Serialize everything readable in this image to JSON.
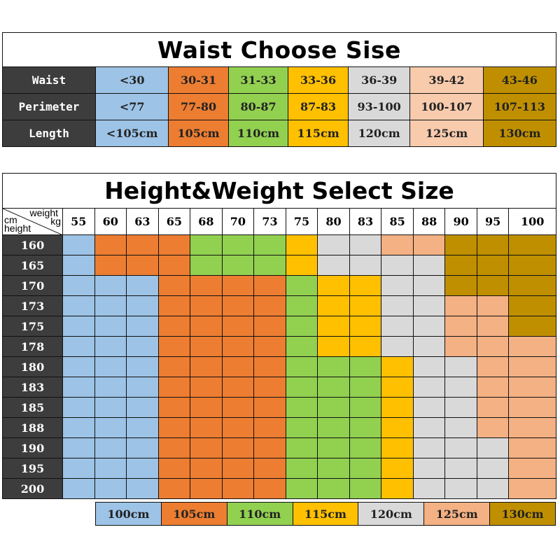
{
  "colors": {
    "dark_header": "#3d3d3d",
    "blue": "#9dc3e6",
    "orange": "#ed7d31",
    "green": "#92d050",
    "yellow": "#ffc000",
    "grey": "#d9d9d9",
    "peach_light": "#f8cbad",
    "peach": "#f4b183",
    "brown": "#bf8f00"
  },
  "waist_table": {
    "title": "Waist Choose Sise",
    "rows": [
      {
        "label": "Waist",
        "values": [
          "<30",
          "30-31",
          "31-33",
          "33-36",
          "36-39",
          "39-42",
          "43-46"
        ]
      },
      {
        "label": "Perimeter",
        "values": [
          "<77",
          "77-80",
          "80-87",
          "87-83",
          "93-100",
          "100-107",
          "107-113"
        ]
      },
      {
        "label": "Length",
        "values": [
          "<105cm",
          "105cm",
          "110cm",
          "115cm",
          "120cm",
          "125cm",
          "130cm"
        ]
      }
    ],
    "column_colors": [
      "blue",
      "orange",
      "green",
      "yellow",
      "grey",
      "peach_light",
      "brown"
    ]
  },
  "hw_table": {
    "title": "Height&Weight Select Size",
    "corner": {
      "weight": "weight",
      "kg": "kg",
      "cm": "cm",
      "height": "height"
    },
    "weights": [
      "55",
      "60",
      "63",
      "65",
      "68",
      "70",
      "73",
      "75",
      "80",
      "83",
      "85",
      "88",
      "90",
      "95",
      "100"
    ],
    "heights": [
      "160",
      "165",
      "170",
      "173",
      "175",
      "178",
      "180",
      "183",
      "185",
      "188",
      "190",
      "195",
      "200"
    ]
  },
  "legend": {
    "items": [
      {
        "label": "100cm",
        "color": "blue"
      },
      {
        "label": "105cm",
        "color": "orange"
      },
      {
        "label": "110cm",
        "color": "green"
      },
      {
        "label": "115cm",
        "color": "yellow"
      },
      {
        "label": "120cm",
        "color": "grey"
      },
      {
        "label": "125cm",
        "color": "peach"
      },
      {
        "label": "130cm",
        "color": "brown"
      }
    ]
  },
  "chart_data": {
    "type": "heatmap",
    "title": "Height&Weight Select Size",
    "xlabel": "weight kg",
    "ylabel": "height cm",
    "x": [
      "55",
      "60",
      "63",
      "65",
      "68",
      "70",
      "73",
      "75",
      "80",
      "83",
      "85",
      "88",
      "90",
      "95",
      "100"
    ],
    "y": [
      "160",
      "165",
      "170",
      "173",
      "175",
      "178",
      "180",
      "183",
      "185",
      "188",
      "190",
      "195",
      "200"
    ],
    "legend": {
      "100cm": "blue",
      "105cm": "orange",
      "110cm": "green",
      "115cm": "yellow",
      "120cm": "grey",
      "125cm": "peach",
      "130cm": "brown"
    },
    "values": [
      [
        "100cm",
        "105cm",
        "105cm",
        "105cm",
        "110cm",
        "110cm",
        "110cm",
        "115cm",
        "120cm",
        "120cm",
        "125cm",
        "125cm",
        "130cm",
        "130cm",
        "130cm"
      ],
      [
        "100cm",
        "105cm",
        "105cm",
        "105cm",
        "110cm",
        "110cm",
        "110cm",
        "115cm",
        "120cm",
        "120cm",
        "120cm",
        "120cm",
        "130cm",
        "130cm",
        "130cm"
      ],
      [
        "100cm",
        "100cm",
        "100cm",
        "105cm",
        "105cm",
        "105cm",
        "105cm",
        "110cm",
        "115cm",
        "115cm",
        "120cm",
        "120cm",
        "130cm",
        "130cm",
        "130cm"
      ],
      [
        "100cm",
        "100cm",
        "100cm",
        "105cm",
        "105cm",
        "105cm",
        "105cm",
        "110cm",
        "115cm",
        "115cm",
        "120cm",
        "120cm",
        "125cm",
        "125cm",
        "130cm"
      ],
      [
        "100cm",
        "100cm",
        "100cm",
        "105cm",
        "105cm",
        "105cm",
        "105cm",
        "110cm",
        "115cm",
        "115cm",
        "120cm",
        "120cm",
        "125cm",
        "125cm",
        "130cm"
      ],
      [
        "100cm",
        "100cm",
        "100cm",
        "105cm",
        "105cm",
        "105cm",
        "105cm",
        "110cm",
        "115cm",
        "115cm",
        "120cm",
        "120cm",
        "125cm",
        "125cm",
        "125cm"
      ],
      [
        "100cm",
        "100cm",
        "100cm",
        "105cm",
        "105cm",
        "105cm",
        "105cm",
        "110cm",
        "110cm",
        "110cm",
        "115cm",
        "120cm",
        "120cm",
        "125cm",
        "125cm"
      ],
      [
        "100cm",
        "100cm",
        "100cm",
        "105cm",
        "105cm",
        "105cm",
        "105cm",
        "110cm",
        "110cm",
        "110cm",
        "115cm",
        "120cm",
        "120cm",
        "125cm",
        "125cm"
      ],
      [
        "100cm",
        "100cm",
        "100cm",
        "105cm",
        "105cm",
        "105cm",
        "105cm",
        "110cm",
        "110cm",
        "110cm",
        "115cm",
        "120cm",
        "120cm",
        "125cm",
        "125cm"
      ],
      [
        "100cm",
        "100cm",
        "100cm",
        "105cm",
        "105cm",
        "105cm",
        "105cm",
        "110cm",
        "110cm",
        "110cm",
        "115cm",
        "120cm",
        "120cm",
        "125cm",
        "125cm"
      ],
      [
        "100cm",
        "100cm",
        "100cm",
        "105cm",
        "105cm",
        "105cm",
        "105cm",
        "110cm",
        "110cm",
        "110cm",
        "115cm",
        "120cm",
        "120cm",
        "120cm",
        "125cm"
      ],
      [
        "100cm",
        "100cm",
        "100cm",
        "105cm",
        "105cm",
        "105cm",
        "105cm",
        "110cm",
        "110cm",
        "110cm",
        "115cm",
        "120cm",
        "120cm",
        "120cm",
        "125cm"
      ],
      [
        "100cm",
        "100cm",
        "100cm",
        "105cm",
        "105cm",
        "105cm",
        "105cm",
        "110cm",
        "110cm",
        "110cm",
        "115cm",
        "120cm",
        "120cm",
        "120cm",
        "125cm"
      ]
    ]
  }
}
